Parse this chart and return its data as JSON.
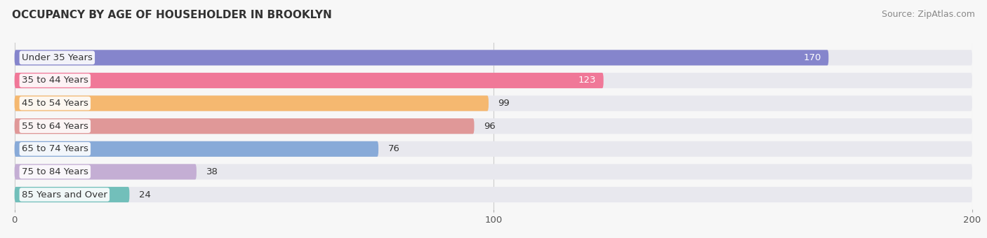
{
  "title": "OCCUPANCY BY AGE OF HOUSEHOLDER IN BROOKLYN",
  "source": "Source: ZipAtlas.com",
  "categories": [
    "Under 35 Years",
    "35 to 44 Years",
    "45 to 54 Years",
    "55 to 64 Years",
    "65 to 74 Years",
    "75 to 84 Years",
    "85 Years and Over"
  ],
  "values": [
    170,
    123,
    99,
    96,
    76,
    38,
    24
  ],
  "bar_colors": [
    "#8585cc",
    "#f07898",
    "#f5b870",
    "#e09898",
    "#88aad8",
    "#c4aed4",
    "#72bfba"
  ],
  "value_inside": [
    true,
    true,
    false,
    false,
    false,
    false,
    false
  ],
  "xlim_left": -2,
  "xlim_right": 200,
  "xticks": [
    0,
    100,
    200
  ],
  "background_color": "#f7f7f7",
  "bar_bg_color": "#e8e8ee",
  "title_fontsize": 11,
  "source_fontsize": 9,
  "label_fontsize": 9.5,
  "value_fontsize": 9.5,
  "bar_height": 0.68,
  "bar_gap": 1.0
}
